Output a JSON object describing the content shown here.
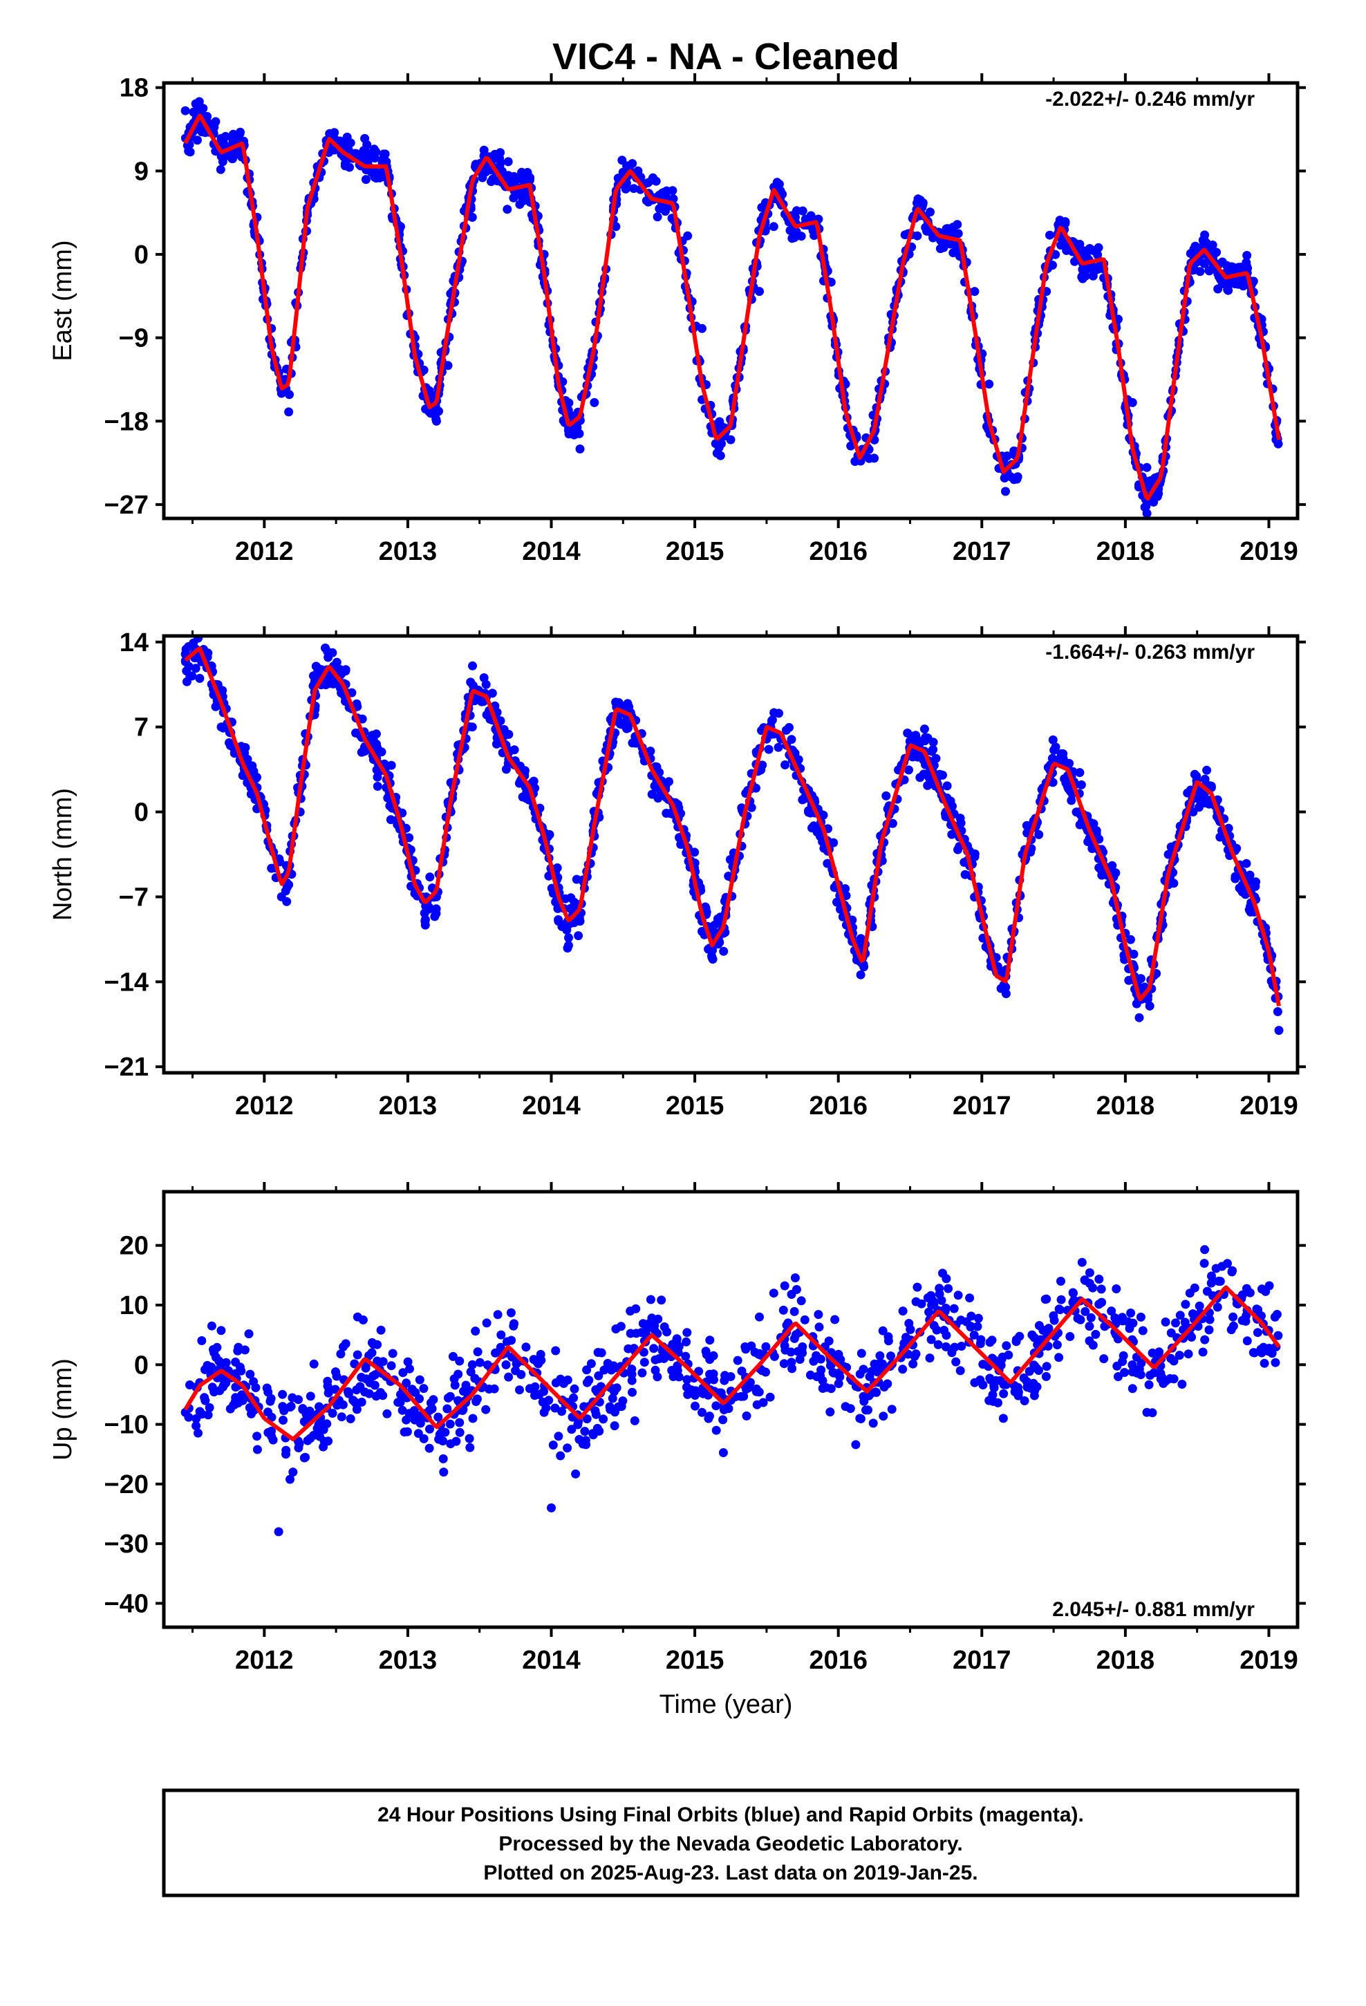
{
  "title": "VIC4  - NA - Cleaned",
  "xlabel": "Time (year)",
  "colors": {
    "data": "#0000ff",
    "fit": "#ff0000",
    "frame": "#000000"
  },
  "footer": {
    "line1": "24 Hour Positions Using Final Orbits (blue) and Rapid Orbits (magenta).",
    "line2": "Processed by the Nevada Geodetic Laboratory.",
    "line3": "Plotted on 2025-Aug-23. Last data on 2019-Jan-25."
  },
  "chart_data": [
    {
      "type": "scatter",
      "component": "East",
      "ylabel": "East (mm)",
      "rate_text": "-2.022+/- 0.246 mm/yr",
      "rate_position": "top-right",
      "xlim": [
        2011.3,
        2019.2
      ],
      "ylim": [
        -28.5,
        18.5
      ],
      "xticks": [
        2012,
        2013,
        2014,
        2015,
        2016,
        2017,
        2018,
        2019
      ],
      "yticks": [
        18,
        9,
        0,
        -9,
        -18,
        -27
      ],
      "x_range_data": [
        2011.45,
        2019.07
      ],
      "series": [
        {
          "style": "points",
          "description": "daily positions",
          "x": [
            2011.45,
            2011.55,
            2011.7,
            2011.85,
            2011.95,
            2012.05,
            2012.12,
            2012.17,
            2012.22,
            2012.3,
            2012.45,
            2012.55,
            2012.7,
            2012.85,
            2012.95,
            2013.05,
            2013.15,
            2013.2,
            2013.28,
            2013.45,
            2013.55,
            2013.7,
            2013.85,
            2013.95,
            2014.05,
            2014.12,
            2014.2,
            2014.3,
            2014.45,
            2014.55,
            2014.7,
            2014.85,
            2014.95,
            2015.05,
            2015.15,
            2015.25,
            2015.45,
            2015.55,
            2015.7,
            2015.85,
            2015.95,
            2016.05,
            2016.15,
            2016.25,
            2016.45,
            2016.55,
            2016.7,
            2016.85,
            2016.95,
            2017.05,
            2017.15,
            2017.25,
            2017.45,
            2017.55,
            2017.7,
            2017.85,
            2017.95,
            2018.05,
            2018.15,
            2018.25,
            2018.45,
            2018.55,
            2018.7,
            2018.85,
            2018.95,
            2019.05
          ],
          "y": [
            15.5,
            14.5,
            12.5,
            11.5,
            4,
            -8,
            -15,
            -17,
            -10,
            5,
            11,
            12,
            12.5,
            10,
            3,
            -9,
            -17,
            -18,
            -12,
            4,
            10,
            10,
            8,
            0,
            -12,
            -19,
            -21,
            -16,
            3,
            9,
            8,
            6,
            2,
            -8,
            -19,
            -20,
            -4,
            3,
            4,
            3,
            -3,
            -14,
            -22,
            -22,
            -2,
            2,
            2,
            1,
            -4,
            -14,
            -22,
            -24,
            -4,
            1,
            0,
            -1,
            -7,
            -16,
            -23,
            -24,
            -3,
            -1,
            -2,
            -2,
            -7,
            -20
          ]
        },
        {
          "style": "line",
          "description": "model fit",
          "x": [
            2011.45,
            2011.55,
            2011.7,
            2011.85,
            2011.95,
            2012.05,
            2012.12,
            2012.17,
            2012.22,
            2012.3,
            2012.45,
            2012.55,
            2012.7,
            2012.85,
            2012.95,
            2013.05,
            2013.15,
            2013.2,
            2013.28,
            2013.45,
            2013.55,
            2013.7,
            2013.85,
            2013.95,
            2014.05,
            2014.12,
            2014.2,
            2014.3,
            2014.45,
            2014.55,
            2014.7,
            2014.85,
            2014.95,
            2015.05,
            2015.15,
            2015.25,
            2015.45,
            2015.55,
            2015.7,
            2015.85,
            2015.95,
            2016.05,
            2016.15,
            2016.25,
            2016.45,
            2016.55,
            2016.7,
            2016.85,
            2016.95,
            2017.05,
            2017.15,
            2017.25,
            2017.45,
            2017.55,
            2017.7,
            2017.85,
            2017.95,
            2018.05,
            2018.15,
            2018.25,
            2018.45,
            2018.55,
            2018.7,
            2018.85,
            2018.95,
            2019.07
          ],
          "y": [
            12,
            15,
            11,
            12,
            2,
            -10,
            -14.5,
            -14,
            -7,
            5,
            12.5,
            11,
            9.5,
            9.5,
            0,
            -11,
            -16.5,
            -16,
            -8,
            8,
            10.5,
            7,
            7.5,
            -2,
            -14,
            -18.5,
            -17.5,
            -10,
            7,
            9,
            6,
            5.5,
            -4,
            -14,
            -20,
            -18.5,
            2,
            7,
            3,
            3.5,
            -6,
            -17,
            -22,
            -19,
            -1,
            5,
            2,
            1.5,
            -8,
            -18,
            -23.5,
            -22,
            -1,
            3,
            -1,
            -0.5,
            -10,
            -21,
            -26.5,
            -24,
            -1,
            0.5,
            -2.5,
            -2,
            -9,
            -20
          ]
        }
      ]
    },
    {
      "type": "scatter",
      "component": "North",
      "ylabel": "North (mm)",
      "rate_text": "-1.664+/- 0.263 mm/yr",
      "rate_position": "top-right",
      "xlim": [
        2011.3,
        2019.2
      ],
      "ylim": [
        -21.5,
        14.5
      ],
      "xticks": [
        2012,
        2013,
        2014,
        2015,
        2016,
        2017,
        2018,
        2019
      ],
      "yticks": [
        14,
        7,
        0,
        -7,
        -14,
        -21
      ],
      "x_range_data": [
        2011.45,
        2019.07
      ],
      "series": [
        {
          "style": "points",
          "description": "daily positions",
          "x": [
            2011.45,
            2011.55,
            2011.7,
            2011.85,
            2011.95,
            2012.05,
            2012.12,
            2012.17,
            2012.25,
            2012.35,
            2012.45,
            2012.55,
            2012.7,
            2012.85,
            2012.95,
            2013.05,
            2013.12,
            2013.2,
            2013.3,
            2013.45,
            2013.55,
            2013.7,
            2013.85,
            2013.95,
            2014.05,
            2014.12,
            2014.2,
            2014.3,
            2014.45,
            2014.55,
            2014.7,
            2014.85,
            2014.95,
            2015.05,
            2015.12,
            2015.2,
            2015.35,
            2015.5,
            2015.6,
            2015.75,
            2015.9,
            2016.0,
            2016.1,
            2016.17,
            2016.3,
            2016.5,
            2016.6,
            2016.75,
            2016.9,
            2017.0,
            2017.1,
            2017.17,
            2017.3,
            2017.5,
            2017.6,
            2017.75,
            2017.9,
            2018.0,
            2018.1,
            2018.17,
            2018.3,
            2018.5,
            2018.6,
            2018.75,
            2018.9,
            2019.0,
            2019.07
          ],
          "y": [
            13,
            11,
            7,
            3,
            2,
            -3,
            -7,
            -6,
            0,
            8,
            11,
            10,
            5,
            2,
            -1,
            -6,
            -9,
            -7,
            0,
            7,
            8,
            4,
            1,
            -3,
            -9,
            -11,
            -9,
            -2,
            9,
            8,
            3,
            0,
            -3,
            -9,
            -12,
            -10,
            -1,
            6,
            6,
            1,
            -3,
            -6,
            -10,
            -12,
            -3,
            5,
            5,
            0,
            -4,
            -8,
            -12,
            -13,
            -4,
            4,
            3,
            -1,
            -5,
            -10,
            -15,
            -16,
            -6,
            2,
            2,
            -3,
            -7,
            -12,
            -18
          ]
        },
        {
          "style": "line",
          "description": "model fit",
          "x": [
            2011.45,
            2011.55,
            2011.7,
            2011.85,
            2011.95,
            2012.05,
            2012.12,
            2012.17,
            2012.25,
            2012.35,
            2012.45,
            2012.55,
            2012.7,
            2012.85,
            2012.95,
            2013.05,
            2013.12,
            2013.2,
            2013.3,
            2013.45,
            2013.55,
            2013.7,
            2013.85,
            2013.95,
            2014.05,
            2014.12,
            2014.2,
            2014.3,
            2014.45,
            2014.55,
            2014.7,
            2014.85,
            2014.95,
            2015.05,
            2015.12,
            2015.2,
            2015.35,
            2015.5,
            2015.6,
            2015.75,
            2015.9,
            2016.0,
            2016.1,
            2016.17,
            2016.3,
            2016.5,
            2016.6,
            2016.75,
            2016.9,
            2017.0,
            2017.1,
            2017.17,
            2017.3,
            2017.5,
            2017.6,
            2017.75,
            2017.9,
            2018.0,
            2018.1,
            2018.17,
            2018.3,
            2018.5,
            2018.6,
            2018.75,
            2018.9,
            2019.0,
            2019.07
          ],
          "y": [
            12.5,
            13.5,
            9,
            4,
            1.5,
            -3,
            -6,
            -5,
            2,
            10,
            12,
            10.5,
            6,
            3,
            -1,
            -6,
            -7.5,
            -6.5,
            1,
            10,
            9.5,
            4.5,
            2,
            -2,
            -7,
            -9,
            -8,
            -1,
            8.5,
            8,
            3.5,
            0.5,
            -3,
            -8.5,
            -11,
            -9.5,
            0,
            7,
            6.5,
            2.5,
            -1.5,
            -6,
            -10.5,
            -12.5,
            -2.5,
            5.5,
            5,
            0.5,
            -3.5,
            -8.5,
            -13.5,
            -14,
            -3.5,
            4,
            3.5,
            -1.5,
            -5.5,
            -11,
            -15.5,
            -14.5,
            -5,
            2.5,
            1.5,
            -3.5,
            -7.5,
            -11.5,
            -16
          ]
        }
      ]
    },
    {
      "type": "scatter",
      "component": "Up",
      "ylabel": "Up (mm)",
      "rate_text": "2.045+/- 0.881 mm/yr",
      "rate_position": "bottom-right",
      "xlim": [
        2011.3,
        2019.2
      ],
      "ylim": [
        -44,
        29
      ],
      "xticks": [
        2012,
        2013,
        2014,
        2015,
        2016,
        2017,
        2018,
        2019
      ],
      "yticks": [
        20,
        10,
        0,
        -10,
        -20,
        -30,
        -40
      ],
      "x_range_data": [
        2011.45,
        2019.07
      ],
      "series": [
        {
          "style": "points",
          "description": "daily positions",
          "x": [
            2011.45,
            2011.55,
            2011.65,
            2011.75,
            2011.85,
            2011.95,
            2012.05,
            2012.1,
            2012.15,
            2012.2,
            2012.3,
            2012.45,
            2012.55,
            2012.65,
            2012.75,
            2012.85,
            2012.95,
            2013.05,
            2013.15,
            2013.25,
            2013.35,
            2013.45,
            2013.55,
            2013.65,
            2013.75,
            2013.85,
            2013.95,
            2014.0,
            2014.05,
            2014.15,
            2014.25,
            2014.35,
            2014.45,
            2014.55,
            2014.65,
            2014.75,
            2014.85,
            2014.95,
            2015.05,
            2015.15,
            2015.25,
            2015.35,
            2015.45,
            2015.55,
            2015.65,
            2015.75,
            2015.85,
            2015.95,
            2016.05,
            2016.15,
            2016.25,
            2016.35,
            2016.45,
            2016.55,
            2016.65,
            2016.75,
            2016.85,
            2016.95,
            2017.05,
            2017.15,
            2017.25,
            2017.35,
            2017.45,
            2017.55,
            2017.65,
            2017.75,
            2017.85,
            2017.95,
            2018.05,
            2018.15,
            2018.25,
            2018.35,
            2018.45,
            2018.55,
            2018.65,
            2018.75,
            2018.85,
            2018.95,
            2019.05
          ],
          "y": [
            -8,
            -3,
            2,
            -1,
            -6,
            -7,
            -12,
            -28,
            -15,
            -18,
            -9,
            -4,
            3,
            8,
            2,
            -2,
            -5,
            -9,
            -14,
            -18,
            -6,
            0,
            7,
            5,
            -1,
            -4,
            -8,
            -24,
            -12,
            -7,
            -3,
            2,
            6,
            9,
            4,
            1,
            -2,
            -5,
            -8,
            -11,
            -2,
            3,
            8,
            12,
            7,
            3,
            -2,
            -4,
            -7,
            -9,
            -3,
            4,
            9,
            13,
            10,
            3,
            -1,
            -3,
            -6,
            -9,
            -1,
            5,
            11,
            14,
            9,
            4,
            1,
            -2,
            -4,
            -8,
            1,
            7,
            12,
            17,
            14,
            8,
            4,
            2,
            3
          ]
        },
        {
          "style": "line",
          "description": "model fit",
          "x": [
            2011.45,
            2011.55,
            2011.7,
            2011.85,
            2012.0,
            2012.2,
            2012.45,
            2012.7,
            2012.95,
            2013.2,
            2013.45,
            2013.7,
            2013.95,
            2014.2,
            2014.45,
            2014.7,
            2014.95,
            2015.2,
            2015.45,
            2015.7,
            2015.95,
            2016.2,
            2016.45,
            2016.7,
            2016.95,
            2017.2,
            2017.45,
            2017.7,
            2017.95,
            2018.2,
            2018.45,
            2018.7,
            2018.95,
            2019.07
          ],
          "y": [
            -7.5,
            -3.5,
            -1,
            -3.5,
            -9,
            -12.5,
            -7,
            1,
            -3.5,
            -10.5,
            -5,
            3,
            -3,
            -9,
            -2,
            5,
            -0.5,
            -6.5,
            0,
            7,
            1,
            -4.5,
            2,
            9,
            3,
            -3,
            4,
            11,
            5.5,
            -0.5,
            6,
            13,
            7,
            3
          ]
        }
      ]
    }
  ]
}
